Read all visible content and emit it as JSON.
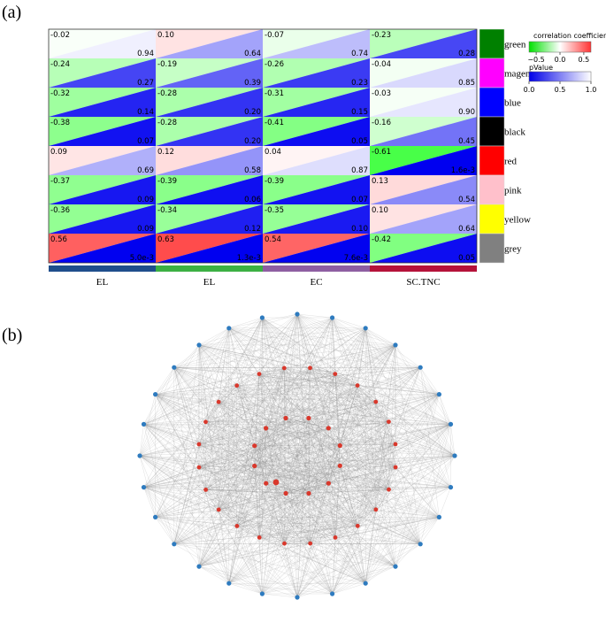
{
  "panels": {
    "a": "(a)",
    "b": "(b)"
  },
  "chart_data": [
    {
      "type": "heatmap",
      "traits": [
        "EL",
        "EL",
        "EC",
        "SC.TNC"
      ],
      "trait_colors": [
        "#1f4e8c",
        "#3cb043",
        "#8e5ea2",
        "#b5123a"
      ],
      "modules": [
        "green",
        "magenta",
        "blue",
        "black",
        "red",
        "pink",
        "yellow",
        "grey"
      ],
      "module_colors": [
        "#008000",
        "#ff00ff",
        "#0000ff",
        "#000000",
        "#ff0000",
        "#ffc0cb",
        "#ffff00",
        "#808080"
      ],
      "correlation": [
        [
          -0.02,
          0.1,
          -0.07,
          -0.23
        ],
        [
          -0.24,
          -0.19,
          -0.26,
          -0.04
        ],
        [
          -0.32,
          -0.28,
          -0.31,
          -0.03
        ],
        [
          -0.38,
          -0.28,
          -0.41,
          -0.16
        ],
        [
          0.09,
          0.12,
          0.04,
          -0.61
        ],
        [
          -0.37,
          -0.39,
          -0.39,
          0.13
        ],
        [
          -0.36,
          -0.34,
          -0.35,
          0.1
        ],
        [
          0.56,
          0.63,
          0.54,
          -0.42
        ]
      ],
      "pvalue_labels": [
        [
          "0.94",
          "0.64",
          "0.74",
          "0.28"
        ],
        [
          "0.27",
          "0.39",
          "0.23",
          "0.85"
        ],
        [
          "0.14",
          "0.20",
          "0.15",
          "0.90"
        ],
        [
          "0.07",
          "0.20",
          "0.05",
          "0.45"
        ],
        [
          "0.69",
          "0.58",
          "0.87",
          "1.6e-3"
        ],
        [
          "0.09",
          "0.06",
          "0.07",
          "0.54"
        ],
        [
          "0.09",
          "0.12",
          "0.10",
          "0.64"
        ],
        [
          "5.0e-3",
          "1.3e-3",
          "7.6e-3",
          "0.05"
        ]
      ],
      "pvalue_numeric": [
        [
          0.94,
          0.64,
          0.74,
          0.28
        ],
        [
          0.27,
          0.39,
          0.23,
          0.85
        ],
        [
          0.14,
          0.2,
          0.15,
          0.9
        ],
        [
          0.07,
          0.2,
          0.05,
          0.45
        ],
        [
          0.69,
          0.58,
          0.87,
          0.0016
        ],
        [
          0.09,
          0.06,
          0.07,
          0.54
        ],
        [
          0.09,
          0.12,
          0.1,
          0.64
        ],
        [
          0.005,
          0.0013,
          0.0076,
          0.05
        ]
      ],
      "colorbar_correlation": {
        "title": "correlation coefficien",
        "ticks": [
          "−0.5",
          "0.0",
          "0.5"
        ],
        "range": [
          -0.65,
          0.65
        ]
      },
      "colorbar_pvalue": {
        "title": "pValue",
        "ticks": [
          "0.0",
          "0.5",
          "1.0"
        ],
        "range": [
          0,
          1
        ]
      }
    },
    {
      "type": "network",
      "node_groups": {
        "blue_outer_ring": 28,
        "red_middle_ring": 24,
        "red_inner_ring": 12
      },
      "colors": {
        "hub_node": "#d9382c",
        "outer_node": "#2e7bbf",
        "edge": "#8a8a8a"
      }
    }
  ]
}
